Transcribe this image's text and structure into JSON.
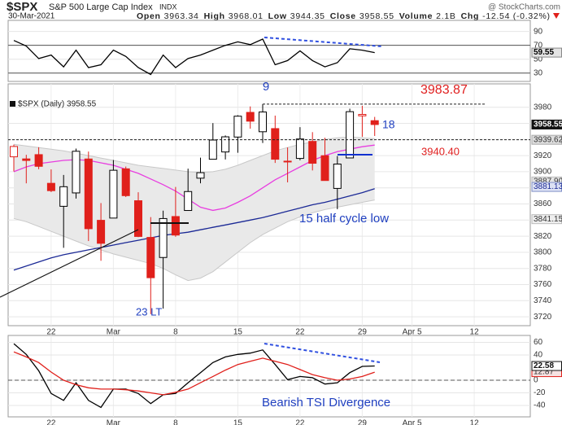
{
  "header": {
    "symbol": "$SPX",
    "name": "S&P 500 Large Cap Index",
    "exchange": "INDX",
    "source": "@ StockCharts.com",
    "date": "30-Mar-2021",
    "quote": [
      {
        "label": "Open",
        "value": "3963.34"
      },
      {
        "label": "High",
        "value": "3968.01"
      },
      {
        "label": "Low",
        "value": "3944.35"
      },
      {
        "label": "Close",
        "value": "3958.55"
      },
      {
        "label": "Volume",
        "value": "2.1B"
      },
      {
        "label": "Chg",
        "value": "-12.54 (-0.32%)"
      }
    ]
  },
  "chart_data": [
    {
      "type": "line",
      "color": "#000000",
      "values": [
        77,
        69,
        51,
        56,
        39,
        63,
        38,
        42,
        63,
        54,
        38,
        28,
        56,
        38,
        51,
        56,
        63,
        70,
        75,
        71,
        79,
        42,
        48,
        62,
        48,
        39,
        45,
        65,
        63,
        59.55
      ],
      "ylim": [
        18,
        106
      ],
      "yticks": [
        30,
        50,
        70,
        90
      ],
      "reference_lines": [
        70,
        30
      ],
      "grid": true,
      "markers": [
        {
          "value": 59.55,
          "bg": "#e4e4e4",
          "border": "#888888",
          "fg": "#000000"
        }
      ]
    },
    {
      "type": "candlestick",
      "legend": "$SPX (Daily) 3958.55",
      "categories": [
        null,
        null,
        null,
        "22",
        null,
        null,
        null,
        null,
        "Mar",
        null,
        null,
        null,
        null,
        "8",
        null,
        null,
        null,
        null,
        "15",
        null,
        null,
        null,
        null,
        "22",
        null,
        null,
        null,
        null,
        "29",
        null,
        null,
        null,
        "Apr 5",
        null,
        null,
        null,
        null,
        "12",
        null
      ],
      "open": [
        3918.5,
        3915.9,
        3921.2,
        3885.6,
        3857.1,
        3873.7,
        3915.8,
        3839.7,
        3842.5,
        3903.6,
        3864.0,
        3818.5,
        3793.6,
        3844.4,
        3851.9,
        3892.0,
        3915.5,
        3924.5,
        3943.0,
        3973.6,
        3949.6,
        3953.5,
        3913.1,
        3916.5,
        3937.6,
        3919.9,
        3879.3,
        3917.1,
        3969.3,
        3963.34,
        null,
        null,
        null,
        null,
        null,
        null,
        null,
        null,
        null
      ],
      "high": [
        3933.6,
        3921.0,
        3930.4,
        3902.9,
        3896.0,
        3928.7,
        3925.0,
        3861.1,
        3914.5,
        3906.4,
        3874.5,
        3843.7,
        3851.7,
        3881.1,
        3903.8,
        3917.4,
        3960.3,
        3945.0,
        3970.1,
        3981.0,
        3983.87,
        3969.6,
        3930.1,
        3955.3,
        3949.1,
        3942.1,
        3919.5,
        3978.2,
        3981.8,
        3968.01,
        null,
        null,
        null,
        null,
        null,
        null,
        null,
        null,
        null
      ],
      "low": [
        3900.4,
        3885.6,
        3903.1,
        3874.7,
        3805.6,
        3866.7,
        3814.0,
        3789.5,
        3842.5,
        3868.6,
        3818.9,
        3723.3,
        3730.2,
        3819.3,
        3851.9,
        3885.7,
        3915.5,
        3915.2,
        3923.5,
        3953.4,
        3935.7,
        3910.9,
        3886.8,
        3914.2,
        3901.6,
        3889.1,
        3853.5,
        3917.1,
        3943.3,
        3944.35,
        null,
        null,
        null,
        null,
        null,
        null,
        null,
        null,
        null
      ],
      "close": [
        3931.3,
        3914.0,
        3906.7,
        3876.5,
        3881.4,
        3925.4,
        3829.3,
        3811.2,
        3901.8,
        3870.3,
        3819.7,
        3768.5,
        3841.9,
        3821.4,
        3875.4,
        3898.8,
        3939.3,
        3943.3,
        3968.9,
        3962.7,
        3974.1,
        3915.5,
        3913.1,
        3940.6,
        3910.5,
        3889.1,
        3909.5,
        3974.5,
        3971.1,
        3958.55,
        null,
        null,
        null,
        null,
        null,
        null,
        null,
        null,
        null
      ],
      "colors": [
        "#e0201b",
        "#e0201b",
        "#e0201b",
        "#e0201b",
        "#000000",
        "#000000",
        "#e0201b",
        "#e0201b",
        "#000000",
        "#e0201b",
        "#e0201b",
        "#e0201b",
        "#000000",
        "#e0201b",
        "#000000",
        "#000000",
        "#000000",
        "#000000",
        "#000000",
        "#e0201b",
        "#000000",
        "#e0201b",
        "#e0201b",
        "#000000",
        "#e0201b",
        "#e0201b",
        "#000000",
        "#000000",
        "#e0201b",
        "#e0201b",
        null,
        null,
        null,
        null,
        null,
        null,
        null,
        null,
        null
      ],
      "band": {
        "color": "#e9e9e9",
        "edge": "#c8c8c8",
        "upper": [
          3934,
          3932,
          3930,
          3928,
          3926,
          3923,
          3920,
          3917,
          3914,
          3911,
          3908,
          3906,
          3904,
          3902,
          3900,
          3899,
          3900,
          3903,
          3908,
          3914,
          3920,
          3926,
          3930,
          3934,
          3937,
          3940,
          3942,
          3943,
          3942,
          3941,
          null,
          null,
          null,
          null,
          null,
          null,
          null,
          null,
          null
        ],
        "lower": [
          3842,
          3838,
          3832,
          3826,
          3820,
          3814,
          3808,
          3803,
          3798,
          3794,
          3790,
          3786,
          3780,
          3772,
          3765,
          3768,
          3776,
          3788,
          3800,
          3812,
          3822,
          3830,
          3838,
          3844,
          3849,
          3853,
          3856,
          3859,
          3862,
          3865,
          null,
          null,
          null,
          null,
          null,
          null,
          null,
          null,
          null
        ]
      },
      "series": [
        {
          "color": "#e83ee0",
          "values": [
            3900,
            3906,
            3910,
            3912,
            3914,
            3915,
            3914,
            3911,
            3908,
            3903,
            3898,
            3891,
            3884,
            3876,
            3866,
            3856,
            3852,
            3855,
            3862,
            3870,
            3880,
            3890,
            3898,
            3906,
            3914,
            3920,
            3925,
            3928,
            3931,
            3933,
            null,
            null,
            null,
            null,
            null,
            null,
            null,
            null,
            null
          ]
        },
        {
          "color": "#1c2a96",
          "values": [
            3778,
            3783,
            3788,
            3793,
            3797,
            3800,
            3803,
            3806,
            3809,
            3812,
            3815,
            3818,
            3821,
            3823,
            3825,
            3828,
            3831,
            3834,
            3837,
            3840,
            3843,
            3847,
            3851,
            3855,
            3859,
            3862,
            3866,
            3870,
            3874,
            3879,
            null,
            null,
            null,
            null,
            null,
            null,
            null,
            null,
            null
          ]
        }
      ],
      "ylim": [
        3709,
        4009
      ],
      "yticks": [
        3720,
        3740,
        3760,
        3780,
        3800,
        3820,
        3840,
        3860,
        3880,
        3900,
        3920,
        3940,
        3960,
        3980
      ],
      "grid": true,
      "levels": [
        3983.87,
        3939.62
      ],
      "markers": [
        {
          "value": 3939.62,
          "bg": "#dddddd",
          "border": "#aaaaaa",
          "fg": "#333333"
        },
        {
          "value": 3887.9,
          "label": "3887.90",
          "bg": "#e6e6e6",
          "border": "#bbbbbb",
          "fg": "#333333"
        },
        {
          "value": 3881.13,
          "bg": "#dde2f4",
          "border": "#8090c8",
          "fg": "#1c2a96"
        },
        {
          "value": 3841.15,
          "bg": "#eeeeee",
          "border": "#bbbbbb",
          "fg": "#333333"
        },
        {
          "value": 3958.55,
          "bg": "#111111",
          "border": "#111111",
          "fg": "#ffffff"
        }
      ],
      "annotations": [
        "9",
        "18",
        "3940.40",
        "15 half cycle low",
        "23 LT"
      ]
    },
    {
      "type": "line",
      "categories": [
        null,
        null,
        null,
        "22",
        null,
        null,
        null,
        null,
        "Mar",
        null,
        null,
        null,
        null,
        "8",
        null,
        null,
        null,
        null,
        "15",
        null,
        null,
        null,
        null,
        "22",
        null,
        null,
        null,
        null,
        "29",
        null,
        null,
        null,
        "Apr 5",
        null,
        null,
        null,
        null,
        "12",
        null
      ],
      "series": [
        {
          "color": "#000000",
          "values": [
            58,
            41,
            15,
            -21,
            -32,
            -4,
            -32,
            -43,
            -14,
            -14,
            -21,
            -37,
            -23,
            -21,
            -4,
            12,
            28,
            37,
            41,
            43,
            48,
            25,
            1,
            6,
            4,
            -6,
            -4,
            12,
            22,
            22.58,
            null,
            null,
            null,
            null,
            null,
            null,
            null,
            null,
            null
          ]
        },
        {
          "color": "#e0201b",
          "values": [
            45,
            37,
            28,
            13,
            0,
            -7,
            -12,
            -14,
            -14,
            -15,
            -17,
            -20,
            -23,
            -19,
            -14,
            -4,
            6,
            16,
            25,
            30,
            35,
            30,
            25,
            17,
            9,
            4,
            0,
            2,
            6,
            12.87,
            null,
            null,
            null,
            null,
            null,
            null,
            null,
            null,
            null
          ]
        }
      ],
      "ylim": [
        -58,
        71
      ],
      "yticks": [
        -40,
        -20,
        0,
        40,
        60
      ],
      "reference_lines": [
        0
      ],
      "grid": true,
      "markers": [
        {
          "value": 12.87,
          "bg": "#f6e2e2",
          "border": "#e0201b",
          "fg": "#333333"
        },
        {
          "value": 22.58,
          "bg": "#ffffff",
          "border": "#111111",
          "fg": "#111111"
        }
      ],
      "annotations": [
        "Bearish TSI Divergence"
      ]
    }
  ]
}
